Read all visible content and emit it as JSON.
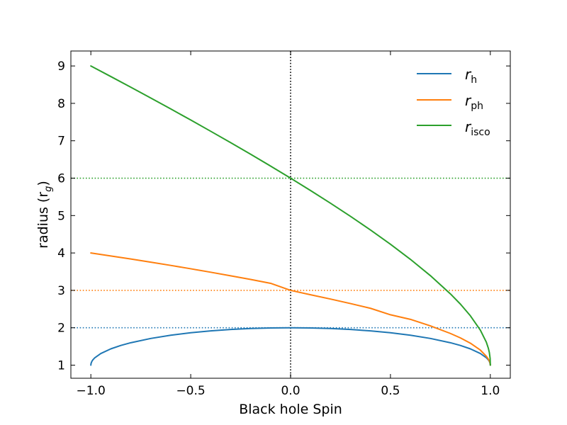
{
  "chart_data": {
    "type": "line",
    "xlabel": "Black hole Spin",
    "ylabel_main": "radius (r",
    "ylabel_sub": "g",
    "ylabel_close": ")",
    "xlim": [
      -1.1,
      1.1
    ],
    "ylim": [
      0.65,
      9.4
    ],
    "xticks": [
      -1.0,
      -0.5,
      0.0,
      0.5,
      1.0
    ],
    "xtick_labels": [
      "−1.0",
      "−0.5",
      "0.0",
      "0.5",
      "1.0"
    ],
    "yticks": [
      1,
      2,
      3,
      4,
      5,
      6,
      7,
      8,
      9
    ],
    "ytick_labels": [
      "1",
      "2",
      "3",
      "4",
      "5",
      "6",
      "7",
      "8",
      "9"
    ],
    "grid": false,
    "legend_position": "top-right",
    "series": [
      {
        "name": "r",
        "name_sub": "h",
        "color": "#1f77b4",
        "x": [
          -1.0,
          -0.999,
          -0.995,
          -0.99,
          -0.98,
          -0.95,
          -0.9,
          -0.85,
          -0.8,
          -0.7,
          -0.6,
          -0.5,
          -0.4,
          -0.3,
          -0.2,
          -0.1,
          0.0,
          0.1,
          0.2,
          0.3,
          0.4,
          0.5,
          0.6,
          0.7,
          0.8,
          0.85,
          0.9,
          0.95,
          0.98,
          0.99,
          0.995,
          0.999,
          1.0
        ],
        "values": [
          1.0,
          1.045,
          1.1,
          1.141,
          1.199,
          1.312,
          1.436,
          1.527,
          1.6,
          1.714,
          1.8,
          1.866,
          1.917,
          1.954,
          1.98,
          1.995,
          2.0,
          1.995,
          1.98,
          1.954,
          1.917,
          1.866,
          1.8,
          1.714,
          1.6,
          1.527,
          1.436,
          1.312,
          1.199,
          1.141,
          1.1,
          1.045,
          1.0
        ]
      },
      {
        "name": "r",
        "name_sub": "ph",
        "color": "#ff7f0e",
        "x": [
          -1.0,
          -0.9,
          -0.8,
          -0.7,
          -0.6,
          -0.5,
          -0.4,
          -0.3,
          -0.2,
          -0.1,
          0.0,
          0.1,
          0.2,
          0.3,
          0.4,
          0.5,
          0.6,
          0.7,
          0.8,
          0.85,
          0.9,
          0.95,
          0.98,
          0.99,
          0.995,
          0.999,
          1.0
        ],
        "values": [
          4.0,
          3.92,
          3.838,
          3.754,
          3.667,
          3.577,
          3.485,
          3.39,
          3.292,
          3.188,
          3.0,
          2.883,
          2.768,
          2.647,
          2.52,
          2.347,
          2.225,
          2.05,
          1.848,
          1.73,
          1.588,
          1.403,
          1.239,
          1.161,
          1.113,
          1.05,
          1.0
        ]
      },
      {
        "name": "r",
        "name_sub": "isco",
        "color": "#2ca02c",
        "x": [
          -1.0,
          -0.9,
          -0.8,
          -0.7,
          -0.6,
          -0.5,
          -0.4,
          -0.3,
          -0.2,
          -0.1,
          0.0,
          0.1,
          0.2,
          0.3,
          0.4,
          0.5,
          0.6,
          0.7,
          0.8,
          0.85,
          0.9,
          0.95,
          0.98,
          0.99,
          0.995,
          0.999,
          1.0
        ],
        "values": [
          9.0,
          8.717,
          8.432,
          8.143,
          7.851,
          7.555,
          7.254,
          6.949,
          6.639,
          6.323,
          6.0,
          5.669,
          5.329,
          4.979,
          4.614,
          4.233,
          3.829,
          3.393,
          2.907,
          2.634,
          2.321,
          1.937,
          1.614,
          1.454,
          1.341,
          1.18,
          1.0
        ]
      }
    ],
    "reference_lines": [
      {
        "orientation": "horizontal",
        "value": 2,
        "color": "#1f77b4",
        "style": "dotted"
      },
      {
        "orientation": "horizontal",
        "value": 3,
        "color": "#ff7f0e",
        "style": "dotted"
      },
      {
        "orientation": "horizontal",
        "value": 6,
        "color": "#2ca02c",
        "style": "dotted"
      },
      {
        "orientation": "vertical",
        "value": 0,
        "color": "#000000",
        "style": "dotted"
      }
    ]
  }
}
